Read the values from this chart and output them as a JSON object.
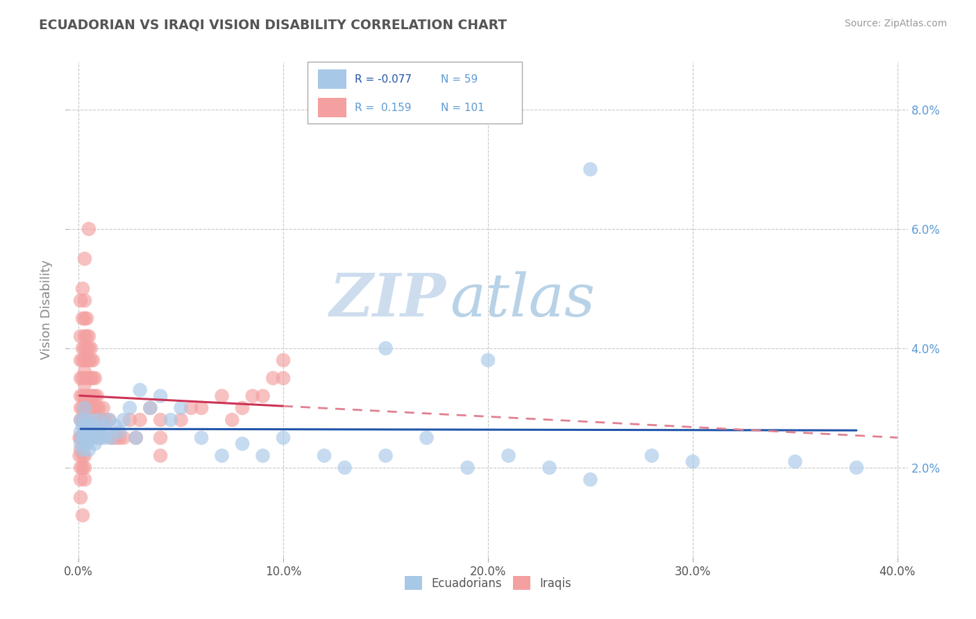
{
  "title": "ECUADORIAN VS IRAQI VISION DISABILITY CORRELATION CHART",
  "source": "Source: ZipAtlas.com",
  "ylabel": "Vision Disability",
  "xlim": [
    -0.005,
    0.405
  ],
  "ylim": [
    0.005,
    0.088
  ],
  "x_ticks": [
    0.0,
    0.1,
    0.2,
    0.3,
    0.4
  ],
  "x_tick_labels": [
    "0.0%",
    "",
    "",
    "",
    "40.0%"
  ],
  "x_tick_labels_full": [
    "0.0%",
    "10.0%",
    "20.0%",
    "30.0%",
    "40.0%"
  ],
  "y_ticks": [
    0.02,
    0.04,
    0.06,
    0.08
  ],
  "y_tick_labels": [
    "2.0%",
    "4.0%",
    "6.0%",
    "8.0%"
  ],
  "ecuadorian_color": "#A8C8E8",
  "iraqi_color": "#F4A0A0",
  "trend_ecuadorian_color": "#2255AA",
  "trend_iraqi_color": "#CC3355",
  "trend_iraqi_dashed_color": "#E08090",
  "background_color": "#FFFFFF",
  "grid_color": "#C8C8C8",
  "R_ecuadorian": -0.077,
  "N_ecuadorian": 59,
  "R_iraqi": 0.159,
  "N_iraqi": 101,
  "legend_label_ecuadorian": "Ecuadorians",
  "legend_label_iraqi": "Iraqis",
  "watermark_zip": "ZIP",
  "watermark_atlas": "atlas",
  "tick_color": "#5B9BD5",
  "title_color": "#555555",
  "ylabel_color": "#888888",
  "ecuadorian_x": [
    0.001,
    0.001,
    0.001,
    0.002,
    0.002,
    0.002,
    0.003,
    0.003,
    0.003,
    0.004,
    0.004,
    0.005,
    0.005,
    0.005,
    0.006,
    0.006,
    0.007,
    0.007,
    0.008,
    0.008,
    0.009,
    0.01,
    0.01,
    0.011,
    0.012,
    0.013,
    0.014,
    0.015,
    0.016,
    0.018,
    0.02,
    0.022,
    0.025,
    0.028,
    0.03,
    0.035,
    0.04,
    0.045,
    0.05,
    0.06,
    0.07,
    0.08,
    0.09,
    0.1,
    0.12,
    0.13,
    0.15,
    0.17,
    0.19,
    0.21,
    0.23,
    0.25,
    0.28,
    0.3,
    0.15,
    0.2,
    0.25,
    0.35,
    0.38
  ],
  "ecuadorian_y": [
    0.026,
    0.024,
    0.028,
    0.025,
    0.027,
    0.023,
    0.028,
    0.025,
    0.03,
    0.026,
    0.024,
    0.027,
    0.025,
    0.023,
    0.026,
    0.028,
    0.025,
    0.027,
    0.026,
    0.024,
    0.025,
    0.028,
    0.026,
    0.025,
    0.027,
    0.025,
    0.026,
    0.028,
    0.025,
    0.027,
    0.026,
    0.028,
    0.03,
    0.025,
    0.033,
    0.03,
    0.032,
    0.028,
    0.03,
    0.025,
    0.022,
    0.024,
    0.022,
    0.025,
    0.022,
    0.02,
    0.022,
    0.025,
    0.02,
    0.022,
    0.02,
    0.018,
    0.022,
    0.021,
    0.04,
    0.038,
    0.07,
    0.021,
    0.02
  ],
  "iraqi_x": [
    0.0005,
    0.0005,
    0.001,
    0.001,
    0.001,
    0.001,
    0.001,
    0.001,
    0.001,
    0.001,
    0.001,
    0.001,
    0.001,
    0.001,
    0.002,
    0.002,
    0.002,
    0.002,
    0.002,
    0.002,
    0.002,
    0.002,
    0.002,
    0.002,
    0.002,
    0.003,
    0.003,
    0.003,
    0.003,
    0.003,
    0.003,
    0.003,
    0.003,
    0.003,
    0.003,
    0.003,
    0.003,
    0.003,
    0.003,
    0.003,
    0.004,
    0.004,
    0.004,
    0.004,
    0.004,
    0.004,
    0.004,
    0.004,
    0.005,
    0.005,
    0.005,
    0.005,
    0.005,
    0.005,
    0.005,
    0.006,
    0.006,
    0.006,
    0.006,
    0.006,
    0.007,
    0.007,
    0.007,
    0.007,
    0.008,
    0.008,
    0.008,
    0.009,
    0.009,
    0.01,
    0.01,
    0.01,
    0.011,
    0.012,
    0.013,
    0.015,
    0.016,
    0.018,
    0.02,
    0.022,
    0.025,
    0.028,
    0.03,
    0.035,
    0.04,
    0.04,
    0.04,
    0.05,
    0.055,
    0.06,
    0.07,
    0.075,
    0.08,
    0.085,
    0.09,
    0.095,
    0.1,
    0.1,
    0.005,
    0.003,
    0.002
  ],
  "iraqi_y": [
    0.025,
    0.022,
    0.048,
    0.042,
    0.038,
    0.035,
    0.032,
    0.03,
    0.028,
    0.025,
    0.023,
    0.02,
    0.018,
    0.015,
    0.05,
    0.045,
    0.04,
    0.038,
    0.035,
    0.032,
    0.03,
    0.028,
    0.025,
    0.022,
    0.02,
    0.048,
    0.045,
    0.042,
    0.04,
    0.038,
    0.036,
    0.034,
    0.032,
    0.03,
    0.028,
    0.026,
    0.024,
    0.022,
    0.02,
    0.018,
    0.045,
    0.042,
    0.04,
    0.038,
    0.035,
    0.032,
    0.03,
    0.028,
    0.042,
    0.04,
    0.038,
    0.035,
    0.032,
    0.03,
    0.028,
    0.04,
    0.038,
    0.035,
    0.032,
    0.03,
    0.038,
    0.035,
    0.032,
    0.03,
    0.035,
    0.032,
    0.03,
    0.032,
    0.03,
    0.03,
    0.028,
    0.025,
    0.028,
    0.03,
    0.028,
    0.028,
    0.025,
    0.025,
    0.025,
    0.025,
    0.028,
    0.025,
    0.028,
    0.03,
    0.028,
    0.025,
    0.022,
    0.028,
    0.03,
    0.03,
    0.032,
    0.028,
    0.03,
    0.032,
    0.032,
    0.035,
    0.035,
    0.038,
    0.06,
    0.055,
    0.012
  ]
}
